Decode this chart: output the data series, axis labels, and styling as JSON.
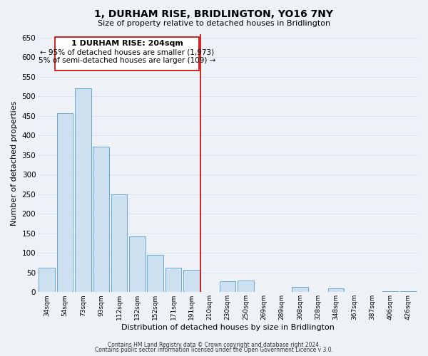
{
  "title": "1, DURHAM RISE, BRIDLINGTON, YO16 7NY",
  "subtitle": "Size of property relative to detached houses in Bridlington",
  "xlabel": "Distribution of detached houses by size in Bridlington",
  "ylabel": "Number of detached properties",
  "bar_labels": [
    "34sqm",
    "54sqm",
    "73sqm",
    "93sqm",
    "112sqm",
    "132sqm",
    "152sqm",
    "171sqm",
    "191sqm",
    "210sqm",
    "230sqm",
    "250sqm",
    "269sqm",
    "289sqm",
    "308sqm",
    "328sqm",
    "348sqm",
    "367sqm",
    "387sqm",
    "406sqm",
    "426sqm"
  ],
  "bar_values": [
    62,
    457,
    520,
    372,
    250,
    142,
    96,
    62,
    57,
    0,
    27,
    29,
    0,
    0,
    13,
    0,
    10,
    0,
    0,
    3,
    2
  ],
  "bar_color": "#cce0f0",
  "bar_edge_color": "#6aaad4",
  "vline_color": "#cc0000",
  "annotation_title": "1 DURHAM RISE: 204sqm",
  "annotation_line1": "← 95% of detached houses are smaller (1,973)",
  "annotation_line2": "5% of semi-detached houses are larger (109) →",
  "annotation_box_color": "#ffffff",
  "annotation_box_edge": "#cc0000",
  "ylim": [
    0,
    660
  ],
  "yticks": [
    0,
    50,
    100,
    150,
    200,
    250,
    300,
    350,
    400,
    450,
    500,
    550,
    600,
    650
  ],
  "footer1": "Contains HM Land Registry data © Crown copyright and database right 2024.",
  "footer2": "Contains public sector information licensed under the Open Government Licence v 3.0.",
  "background_color": "#eef2f7",
  "grid_color": "#d8e4f0"
}
